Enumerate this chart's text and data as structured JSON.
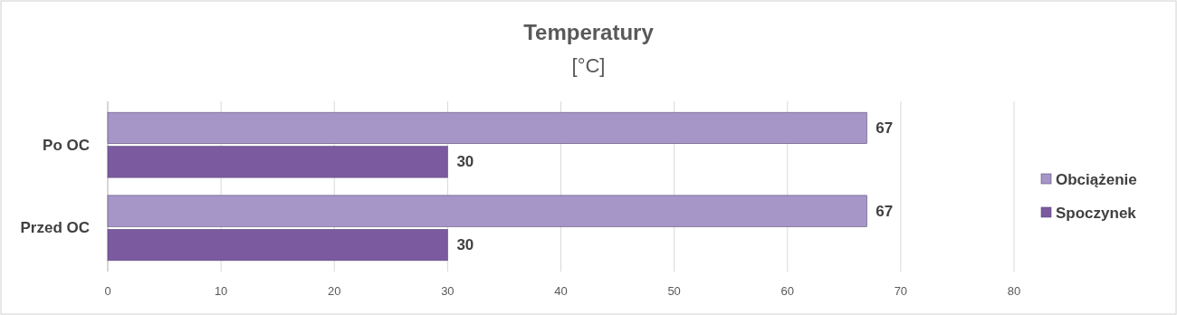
{
  "chart_data": {
    "type": "bar",
    "orientation": "horizontal",
    "title": "Temperatury",
    "subtitle": "[°C]",
    "categories": [
      "Po OC",
      "Przed OC"
    ],
    "series": [
      {
        "name": "Obciążenie",
        "color": "#a696c8",
        "values": [
          67,
          67
        ]
      },
      {
        "name": "Spoczynek",
        "color": "#7b5aa0",
        "values": [
          30,
          30
        ]
      }
    ],
    "xlim": [
      0,
      80
    ],
    "xticks": [
      0,
      10,
      20,
      30,
      40,
      50,
      60,
      70,
      80
    ],
    "grid": "x",
    "legend": "right",
    "data_labels": true
  }
}
